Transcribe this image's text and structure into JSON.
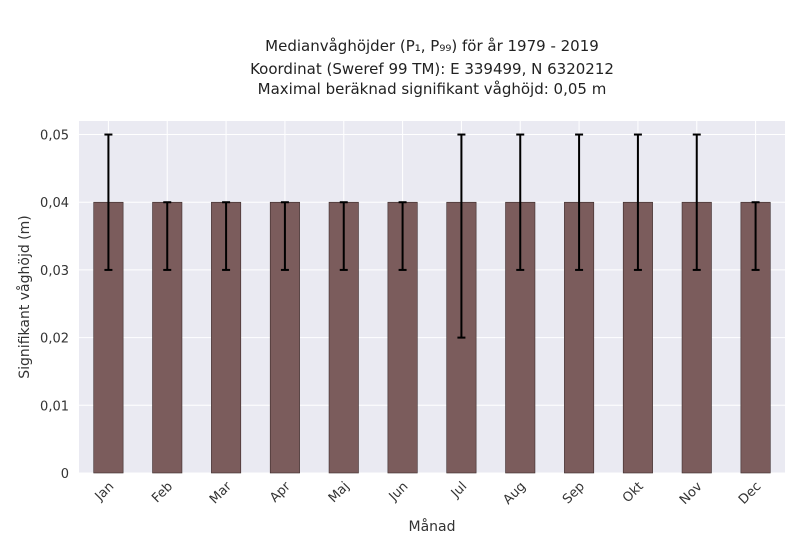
{
  "chart_data": {
    "type": "bar",
    "title_lines": [
      "Medianvåghöjder (P₁, P₉₉) för år 1979 - 2019",
      "Koordinat (Sweref 99 TM): E 339499, N 6320212",
      "Maximal beräknad signifikant våghöjd: 0,05 m"
    ],
    "xlabel": "Månad",
    "ylabel": "Signifikant våghöjd (m)",
    "categories": [
      "Jan",
      "Feb",
      "Mar",
      "Apr",
      "Maj",
      "Jun",
      "Jul",
      "Aug",
      "Sep",
      "Okt",
      "Nov",
      "Dec"
    ],
    "values": [
      0.04,
      0.04,
      0.04,
      0.04,
      0.04,
      0.04,
      0.04,
      0.04,
      0.04,
      0.04,
      0.04,
      0.04
    ],
    "error_low": [
      0.03,
      0.03,
      0.03,
      0.03,
      0.03,
      0.03,
      0.02,
      0.03,
      0.03,
      0.03,
      0.03,
      0.03
    ],
    "error_high": [
      0.05,
      0.04,
      0.04,
      0.04,
      0.04,
      0.04,
      0.05,
      0.05,
      0.05,
      0.05,
      0.05,
      0.04
    ],
    "ylim": [
      0,
      0.052
    ],
    "yticks": [
      0,
      0.01,
      0.02,
      0.03,
      0.04,
      0.05
    ],
    "ytick_labels": [
      "0",
      "0,01",
      "0,02",
      "0,03",
      "0,04",
      "0,05"
    ],
    "grid": true,
    "colors": {
      "plot_background": "#eaeaf2",
      "grid": "#ffffff",
      "bar_fill": "#7b5c5c",
      "bar_edge": "#3a2a2a",
      "error_bar": "#000000"
    }
  }
}
